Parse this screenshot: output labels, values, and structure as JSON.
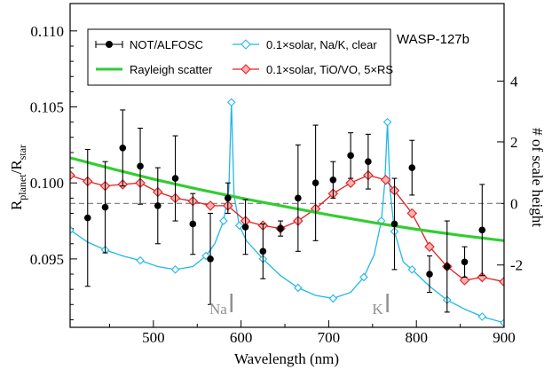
{
  "chart_data": {
    "type": "line",
    "annotation": "WASP-127b",
    "xlabel": "Wavelength (nm)",
    "ylabel": "R",
    "ylabel_sub1": "planet",
    "ylabel_sep": "/R",
    "ylabel_sub2": "star",
    "y2label": "# of scale height",
    "xlim": [
      405,
      900
    ],
    "ylim": [
      0.0905,
      0.1118
    ],
    "x_ticks": [
      500,
      600,
      700,
      800,
      900
    ],
    "y_ticks": [
      "0.095",
      "0.100",
      "0.105",
      "0.110"
    ],
    "y_tick_values": [
      0.095,
      0.1,
      0.105,
      0.11
    ],
    "y2_ticks": [
      "-2",
      "0",
      "2",
      "4"
    ],
    "y2_tick_values": [
      0.0946,
      0.09865,
      0.1027,
      0.1067
    ],
    "reference_level": 0.09865,
    "grid": false,
    "legend_position": "top-left",
    "legend": [
      {
        "label": "NOT/ALFOSC",
        "series": "observed"
      },
      {
        "label": "Rayleigh scatter",
        "series": "rayleigh"
      },
      {
        "label": "0.1×solar, Na/K, clear",
        "series": "model_nak"
      },
      {
        "label": "0.1×solar, TiO/VO, 5×RS",
        "series": "model_tio"
      }
    ],
    "line_labels": [
      {
        "text": "Na",
        "x": 589
      },
      {
        "text": "K",
        "x": 767
      }
    ],
    "colors": {
      "observed": "#000000",
      "rayleigh": "#33cc33",
      "model_nak": "#22b8e6",
      "model_tio": "#e02020",
      "reference": "#888888",
      "line_marker": "#909090"
    },
    "series": [
      {
        "name": "NOT/ALFOSC",
        "key": "observed",
        "x": [
          425,
          445,
          465,
          485,
          505,
          525,
          545,
          565,
          585,
          605,
          625,
          645,
          665,
          685,
          705,
          725,
          745,
          775,
          795,
          815,
          835,
          855,
          875
        ],
        "y": [
          0.0977,
          0.0984,
          0.1023,
          0.1011,
          0.0985,
          0.1003,
          0.0973,
          0.095,
          0.099,
          0.0971,
          0.0955,
          0.097,
          0.099,
          0.1,
          0.1002,
          0.1018,
          0.1014,
          0.0973,
          0.101,
          0.094,
          0.0945,
          0.0948,
          0.0969
        ],
        "err": [
          0.0045,
          0.003,
          0.0025,
          0.0025,
          0.0025,
          0.0028,
          0.002,
          0.003,
          0.001,
          0.0018,
          0.0018,
          0.0005,
          0.0035,
          0.0038,
          0.0012,
          0.0015,
          0.0018,
          0.003,
          0.0018,
          0.0012,
          0.003,
          0.001,
          0.003
        ]
      },
      {
        "name": "Rayleigh scatter",
        "key": "rayleigh",
        "x": [
          405,
          450,
          500,
          550,
          600,
          650,
          700,
          750,
          800,
          850,
          900
        ],
        "y": [
          0.10165,
          0.10097,
          0.10025,
          0.0996,
          0.099,
          0.09845,
          0.0979,
          0.0974,
          0.09695,
          0.09655,
          0.0962
        ]
      },
      {
        "name": "0.1×solar, Na/K, clear",
        "key": "model_nak",
        "x": [
          405,
          425,
          445,
          465,
          485,
          505,
          525,
          545,
          560,
          570,
          580,
          586,
          589,
          592,
          598,
          606,
          625,
          645,
          665,
          685,
          705,
          725,
          740,
          752,
          760,
          764,
          767,
          770,
          775,
          785,
          795,
          815,
          835,
          855,
          875,
          900
        ],
        "y": [
          0.0969,
          0.0961,
          0.0956,
          0.0952,
          0.0949,
          0.0945,
          0.0943,
          0.0945,
          0.0952,
          0.096,
          0.0975,
          0.0995,
          0.1053,
          0.0992,
          0.0972,
          0.0962,
          0.095,
          0.0939,
          0.0931,
          0.0926,
          0.0924,
          0.0928,
          0.0938,
          0.0953,
          0.0975,
          0.1,
          0.104,
          0.0995,
          0.0968,
          0.0948,
          0.0943,
          0.0932,
          0.0923,
          0.0917,
          0.0912,
          0.0908
        ]
      },
      {
        "name": "0.1×solar, TiO/VO, 5×RS",
        "key": "model_tio",
        "x": [
          405,
          425,
          445,
          465,
          485,
          505,
          525,
          545,
          565,
          585,
          605,
          625,
          645,
          665,
          685,
          705,
          725,
          745,
          765,
          775,
          795,
          815,
          835,
          855,
          875,
          900
        ],
        "y": [
          0.1005,
          0.1001,
          0.0998,
          0.0999,
          0.1,
          0.0994,
          0.099,
          0.0988,
          0.0985,
          0.0985,
          0.0975,
          0.0972,
          0.097,
          0.0975,
          0.0983,
          0.0993,
          0.1,
          0.1005,
          0.1002,
          0.0995,
          0.098,
          0.0958,
          0.0945,
          0.0936,
          0.0938,
          0.0935
        ]
      }
    ]
  }
}
